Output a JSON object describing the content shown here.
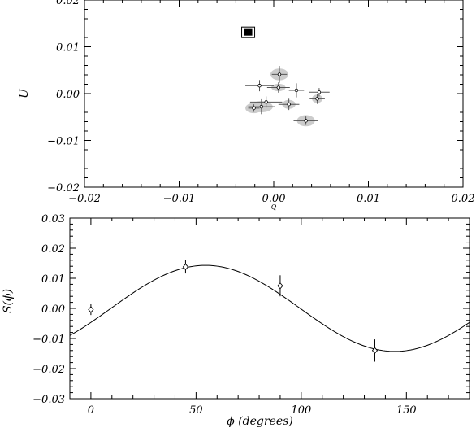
{
  "chart_data": [
    {
      "type": "scatter",
      "title": "",
      "xlabel": "Q",
      "ylabel": "U",
      "xlim": [
        -0.02,
        0.02
      ],
      "ylim": [
        -0.02,
        0.02
      ],
      "xticks": [
        -0.02,
        -0.01,
        0.0,
        0.01,
        0.02
      ],
      "xtick_labels": [
        "−0.02",
        "−0.01",
        "0.00",
        "0.01",
        "0.02"
      ],
      "yticks": [
        -0.02,
        -0.01,
        0.0,
        0.01,
        0.02
      ],
      "ytick_labels": [
        "−0.02",
        "−0.01",
        "0.00",
        "0.01",
        "0.02"
      ],
      "grid": false,
      "square_marker": {
        "x": -0.0027,
        "y": 0.0131
      },
      "points": [
        {
          "x": -0.0015,
          "y": 0.0017,
          "xerr": 0.0015,
          "yerr": 0.0012,
          "ellipse_w": 0.0,
          "ellipse_h": 0.0
        },
        {
          "x": 0.0006,
          "y": 0.0041,
          "xerr": 0.0008,
          "yerr": 0.0018,
          "ellipse_w": 0.0019,
          "ellipse_h": 0.0025
        },
        {
          "x": 0.0005,
          "y": 0.0013,
          "xerr": 0.0012,
          "yerr": 0.0011,
          "ellipse_w": 0.0015,
          "ellipse_h": 0.0016
        },
        {
          "x": 0.0024,
          "y": 0.0007,
          "xerr": 0.0008,
          "yerr": 0.0015,
          "ellipse_w": 0.0,
          "ellipse_h": 0.0
        },
        {
          "x": 0.0048,
          "y": 0.0003,
          "xerr": 0.0011,
          "yerr": 0.0009,
          "ellipse_w": 0.0,
          "ellipse_h": 0.0
        },
        {
          "x": -0.0008,
          "y": -0.0018,
          "xerr": 0.0017,
          "yerr": 0.0012,
          "ellipse_w": 0.0,
          "ellipse_h": 0.0
        },
        {
          "x": -0.0013,
          "y": -0.0028,
          "xerr": 0.0014,
          "yerr": 0.0016,
          "ellipse_w": 0.0024,
          "ellipse_h": 0.0024
        },
        {
          "x": -0.0021,
          "y": -0.0031,
          "xerr": 0.0006,
          "yerr": 0.0008,
          "ellipse_w": 0.0018,
          "ellipse_h": 0.0022
        },
        {
          "x": 0.0016,
          "y": -0.0023,
          "xerr": 0.0011,
          "yerr": 0.0012,
          "ellipse_w": 0.0014,
          "ellipse_h": 0.0019
        },
        {
          "x": 0.0046,
          "y": -0.0011,
          "xerr": 0.0008,
          "yerr": 0.0011,
          "ellipse_w": 0.0011,
          "ellipse_h": 0.0018
        },
        {
          "x": 0.0034,
          "y": -0.0058,
          "xerr": 0.0013,
          "yerr": 0.0009,
          "ellipse_w": 0.0019,
          "ellipse_h": 0.0024
        }
      ]
    },
    {
      "type": "line",
      "title": "",
      "xlabel": "ϕ (degrees)",
      "ylabel": "S(ϕ)",
      "xlim": [
        -10,
        180
      ],
      "ylim": [
        -0.03,
        0.03
      ],
      "xticks": [
        0,
        50,
        100,
        150
      ],
      "xtick_labels": [
        "0",
        "50",
        "100",
        "150"
      ],
      "yticks": [
        -0.03,
        -0.02,
        -0.01,
        0.0,
        0.01,
        0.02,
        0.03
      ],
      "ytick_labels": [
        "−0.03",
        "−0.02",
        "−0.01",
        "0.00",
        "0.01",
        "0.02",
        "0.03"
      ],
      "grid": false,
      "points": [
        {
          "x": 0,
          "y": -0.0004,
          "yerr": 0.0018
        },
        {
          "x": 45,
          "y": 0.0138,
          "yerr": 0.0022
        },
        {
          "x": 90,
          "y": 0.0075,
          "yerr": 0.0035
        },
        {
          "x": 135,
          "y": -0.014,
          "yerr": 0.0037
        }
      ],
      "model_curve": {
        "form": "A*sin(2*phi + p)",
        "amplitude": 0.0143,
        "phase_deg": -19
      }
    }
  ]
}
